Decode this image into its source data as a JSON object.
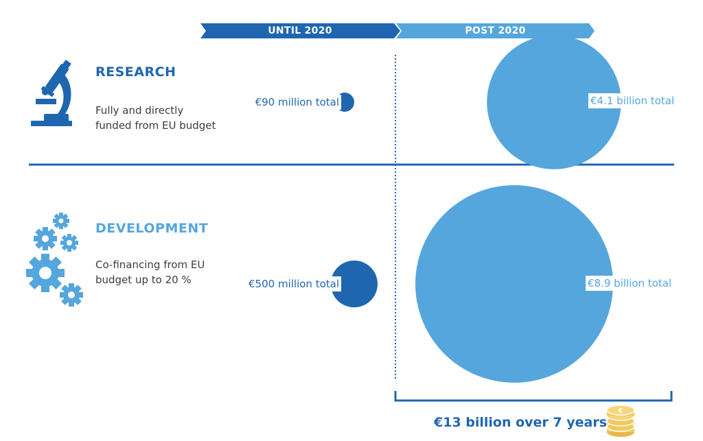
{
  "colors": {
    "dark_blue": "#1f66b0",
    "light_blue": "#55a6dd",
    "text_gray": "#3c3c3c",
    "coin": "#f3c95d"
  },
  "banners": {
    "until": "UNTIL 2020",
    "post": "POST 2020"
  },
  "rows": [
    {
      "heading": "RESEARCH",
      "icon": "microscope-icon",
      "description": [
        "Fully and directly",
        "funded from EU budget"
      ]
    },
    {
      "heading": "DEVELOPMENT",
      "icon": "gears-icon",
      "description": [
        "Co-financing from EU",
        "budget up to 20 %"
      ]
    }
  ],
  "chart_data": {
    "type": "bubble",
    "title": "",
    "categories": [
      "RESEARCH",
      "DEVELOPMENT"
    ],
    "periods": [
      "UNTIL 2020",
      "POST 2020"
    ],
    "unit": "EUR million",
    "series": [
      {
        "name": "UNTIL 2020",
        "values": [
          90,
          500
        ],
        "labels": [
          "€90 million total",
          "€500 million total"
        ]
      },
      {
        "name": "POST 2020",
        "values": [
          4100,
          8900
        ],
        "labels": [
          "€4.1 billion total",
          "€8.9 billion total"
        ]
      }
    ],
    "summary": "€13 billion over 7 years"
  },
  "summary_icon": "coin-stack-icon"
}
